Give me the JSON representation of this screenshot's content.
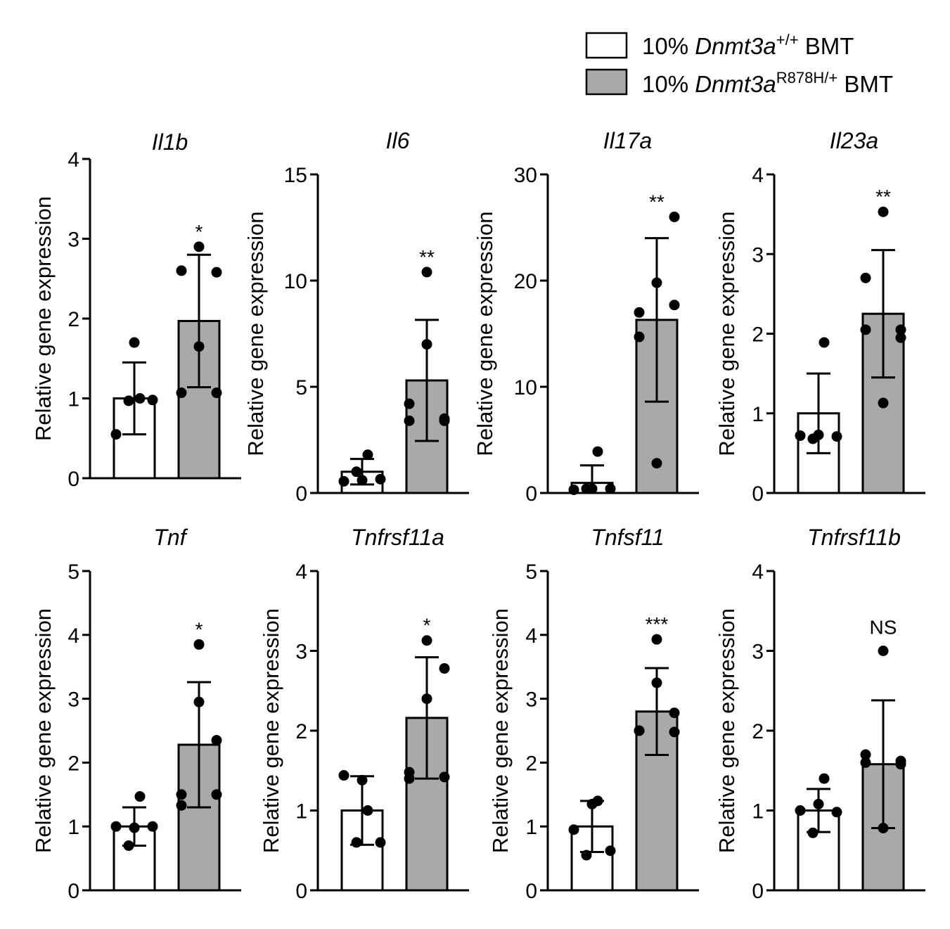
{
  "legend": [
    {
      "prefix": "10% ",
      "gene": "Dnmt3a",
      "genotype": "+/+",
      "suffix": " BMT",
      "color": "#ffffff"
    },
    {
      "prefix": "10% ",
      "gene": "Dnmt3a",
      "genotype": "R878H/+",
      "suffix": " BMT",
      "color": "#a9a9a9"
    }
  ],
  "chart_data": [
    {
      "type": "bar",
      "title": "Il1b",
      "ylabel": "Relative gene expression",
      "ylim": [
        0,
        4
      ],
      "yticks": [
        "0",
        "1",
        "2",
        "3",
        "4"
      ],
      "significance": "*",
      "series": [
        {
          "name": "10% Dnmt3a+/+ BMT",
          "mean": 1.0,
          "sd": 0.45,
          "points": [
            0.55,
            0.97,
            1.0,
            1.7,
            0.98
          ]
        },
        {
          "name": "10% Dnmt3aR878H/+ BMT",
          "mean": 1.97,
          "sd": 0.83,
          "points": [
            1.07,
            2.6,
            1.65,
            2.9,
            2.58,
            1.07
          ]
        }
      ]
    },
    {
      "type": "bar",
      "title": "Il6",
      "ylabel": "Relative gene expression",
      "ylim": [
        0,
        15
      ],
      "yticks": [
        "0",
        "5",
        "10",
        "15"
      ],
      "significance": "**",
      "series": [
        {
          "name": "10% Dnmt3a+/+ BMT",
          "mean": 1.0,
          "sd": 0.6,
          "points": [
            0.55,
            1.0,
            1.8,
            0.6,
            0.65
          ]
        },
        {
          "name": "10% Dnmt3aR878H/+ BMT",
          "mean": 5.3,
          "sd": 2.85,
          "points": [
            3.4,
            4.2,
            7.0,
            10.4,
            3.5,
            3.4
          ]
        }
      ]
    },
    {
      "type": "bar",
      "title": "Il17a",
      "ylabel": "Relative gene expression",
      "ylim": [
        0,
        30
      ],
      "yticks": [
        "0",
        "10",
        "20",
        "30"
      ],
      "significance": "**",
      "series": [
        {
          "name": "10% Dnmt3a+/+ BMT",
          "mean": 0.95,
          "sd": 1.65,
          "points": [
            0.3,
            0.4,
            3.9,
            0.4,
            0.4
          ]
        },
        {
          "name": "10% Dnmt3aR878H/+ BMT",
          "mean": 16.3,
          "sd": 7.7,
          "points": [
            17.0,
            14.7,
            2.8,
            19.8,
            26.0,
            17.7
          ]
        }
      ]
    },
    {
      "type": "bar",
      "title": "Il23a",
      "ylabel": "Relative gene expression",
      "ylim": [
        0,
        4
      ],
      "yticks": [
        "0",
        "1",
        "2",
        "3",
        "4"
      ],
      "significance": "**",
      "series": [
        {
          "name": "10% Dnmt3a+/+ BMT",
          "mean": 1.0,
          "sd": 0.5,
          "points": [
            0.72,
            0.68,
            1.89,
            0.73,
            0.71
          ]
        },
        {
          "name": "10% Dnmt3aR878H/+ BMT",
          "mean": 2.25,
          "sd": 0.8,
          "points": [
            2.05,
            2.7,
            1.13,
            3.53,
            2.05,
            1.95
          ]
        }
      ]
    },
    {
      "type": "bar",
      "title": "Tnf",
      "ylabel": "Relative gene expression",
      "ylim": [
        0,
        5
      ],
      "yticks": [
        "0",
        "1",
        "2",
        "3",
        "4",
        "5"
      ],
      "significance": "*",
      "series": [
        {
          "name": "10% Dnmt3a+/+ BMT",
          "mean": 1.0,
          "sd": 0.3,
          "points": [
            1.0,
            0.7,
            1.47,
            0.98,
            1.0
          ]
        },
        {
          "name": "10% Dnmt3aR878H/+ BMT",
          "mean": 2.28,
          "sd": 0.98,
          "points": [
            1.5,
            1.33,
            2.95,
            3.85,
            2.35,
            1.5
          ]
        }
      ]
    },
    {
      "type": "bar",
      "title": "Tnfrsf11a",
      "ylabel": "Relative gene expression",
      "ylim": [
        0,
        4
      ],
      "yticks": [
        "0",
        "1",
        "2",
        "3",
        "4"
      ],
      "significance": "*",
      "series": [
        {
          "name": "10% Dnmt3a+/+ BMT",
          "mean": 1.0,
          "sd": 0.43,
          "points": [
            1.44,
            0.6,
            1.0,
            1.38,
            0.6
          ]
        },
        {
          "name": "10% Dnmt3aR878H/+ BMT",
          "mean": 2.16,
          "sd": 0.76,
          "points": [
            1.4,
            1.48,
            2.4,
            3.13,
            2.78,
            1.42
          ]
        }
      ]
    },
    {
      "type": "bar",
      "title": "Tnfsf11",
      "ylabel": "Relative gene expression",
      "ylim": [
        0,
        5
      ],
      "yticks": [
        "0",
        "1",
        "2",
        "3",
        "4",
        "5"
      ],
      "significance": "***",
      "series": [
        {
          "name": "10% Dnmt3a+/+ BMT",
          "mean": 1.0,
          "sd": 0.4,
          "points": [
            0.95,
            0.55,
            1.4,
            1.35,
            0.62
          ]
        },
        {
          "name": "10% Dnmt3aR878H/+ BMT",
          "mean": 2.8,
          "sd": 0.68,
          "points": [
            2.5,
            2.5,
            3.25,
            3.93,
            2.78,
            2.48
          ]
        }
      ]
    },
    {
      "type": "bar",
      "title": "Tnfrsf11b",
      "ylabel": "Relative gene expression",
      "ylim": [
        0,
        4
      ],
      "yticks": [
        "0",
        "1",
        "2",
        "3",
        "4"
      ],
      "significance": "NS",
      "series": [
        {
          "name": "10% Dnmt3a+/+ BMT",
          "mean": 1.0,
          "sd": 0.27,
          "points": [
            1.0,
            0.72,
            1.4,
            1.08,
            0.98
          ]
        },
        {
          "name": "10% Dnmt3aR878H/+ BMT",
          "mean": 1.58,
          "sd": 0.8,
          "points": [
            1.6,
            1.7,
            0.78,
            3.0,
            1.62,
            1.58
          ]
        }
      ]
    }
  ]
}
